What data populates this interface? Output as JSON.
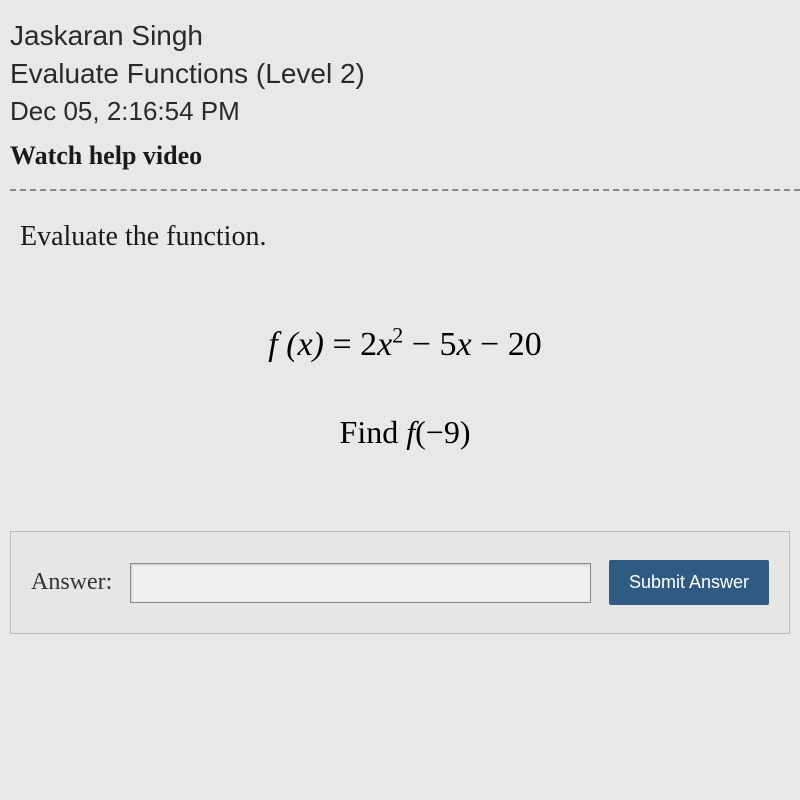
{
  "header": {
    "student_name": "Jaskaran Singh",
    "assignment": "Evaluate Functions (Level 2)",
    "timestamp": "Dec 05, 2:16:54 PM",
    "help_video": "Watch help video"
  },
  "problem": {
    "prompt": "Evaluate the function.",
    "function_lhs": "f (x)",
    "equals": " = ",
    "coef1": "2",
    "var1": "x",
    "exp": "2",
    "minus1": " − ",
    "coef2": "5",
    "var2": "x",
    "minus2": " − ",
    "const": "20",
    "find_label": "Find ",
    "find_fn": "f",
    "find_arg": "(−9)"
  },
  "answer": {
    "label": "Answer:",
    "value": "",
    "submit": "Submit Answer"
  },
  "colors": {
    "page_bg": "#e8e8e6",
    "text": "#1a1a1a",
    "button_bg": "#2f5b82",
    "button_text": "#ffffff",
    "border": "#bbbbbb",
    "divider": "#888888"
  },
  "typography": {
    "header_font": "Trebuchet MS",
    "header_size_pt": 21,
    "help_font": "Comic Sans MS",
    "help_size_pt": 20,
    "prompt_font": "Georgia",
    "prompt_size_pt": 21,
    "math_font": "Times New Roman",
    "math_size_pt": 26
  }
}
